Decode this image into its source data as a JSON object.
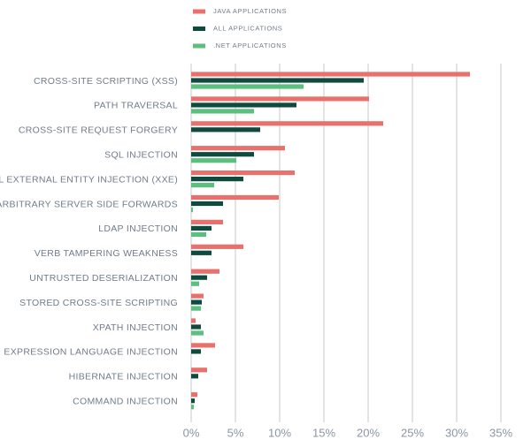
{
  "chart_data": {
    "type": "bar",
    "orientation": "horizontal",
    "categories": [
      "CROSS-SITE SCRIPTING (XSS)",
      "PATH TRAVERSAL",
      "CROSS-SITE REQUEST FORGERY",
      "SQL INJECTION",
      "XML EXTERNAL ENTITY INJECTION (XXE)",
      "ARBITRARY SERVER SIDE FORWARDS",
      "LDAP INJECTION",
      "VERB TAMPERING WEAKNESS",
      "UNTRUSTED DESERIALIZATION",
      "STORED CROSS-SITE SCRIPTING",
      "XPATH INJECTION",
      "EXPRESSION LANGUAGE INJECTION",
      "HIBERNATE INJECTION",
      "COMMAND INJECTION"
    ],
    "series": [
      {
        "name": "JAVA APPLICATIONS",
        "color": "#e8716e",
        "values": [
          31.5,
          20.1,
          21.7,
          10.6,
          11.7,
          9.9,
          3.6,
          5.9,
          3.2,
          1.4,
          0.5,
          2.7,
          1.8,
          0.7
        ]
      },
      {
        "name": "ALL APPLICATIONS",
        "color": "#0f4a3e",
        "values": [
          19.5,
          11.9,
          7.8,
          7.1,
          5.9,
          3.6,
          2.3,
          2.3,
          1.8,
          1.2,
          1.1,
          1.1,
          0.8,
          0.4
        ]
      },
      {
        "name": ".NET APPLICATIONS",
        "color": "#5cbf7e",
        "values": [
          12.7,
          7.1,
          null,
          5.1,
          2.6,
          0.2,
          1.7,
          null,
          0.9,
          1.1,
          1.4,
          null,
          null,
          0.3
        ]
      }
    ],
    "xlim": [
      0,
      35
    ],
    "xticks": [
      {
        "value": 0,
        "label": "0%"
      },
      {
        "value": 5,
        "label": "5%"
      },
      {
        "value": 10,
        "label": "10%"
      },
      {
        "value": 15,
        "label": "15%"
      },
      {
        "value": 20,
        "label": "20%"
      },
      {
        "value": 25,
        "label": "25%"
      },
      {
        "value": 30,
        "label": "30%"
      },
      {
        "value": 35,
        "label": "35%"
      }
    ],
    "grid": true,
    "legend": "top"
  }
}
